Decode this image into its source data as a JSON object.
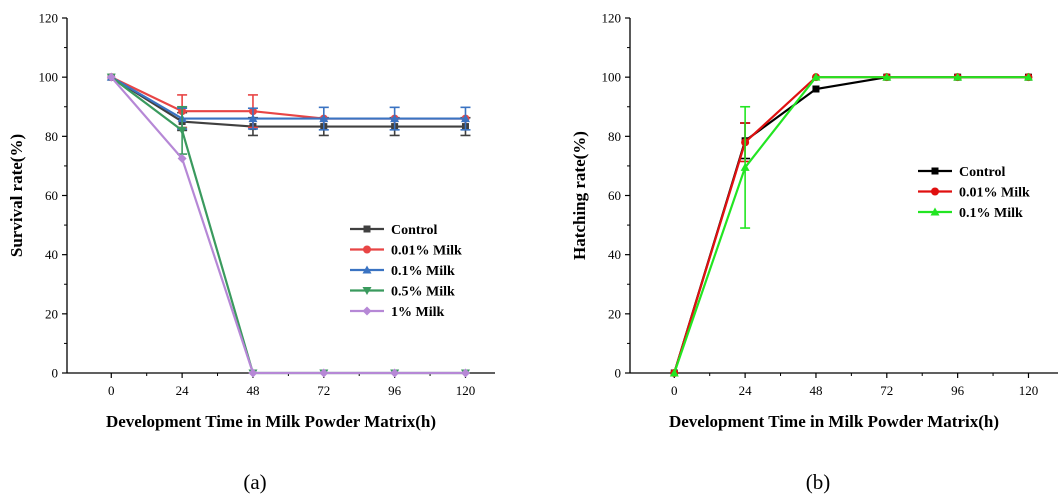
{
  "chart_data": [
    {
      "type": "line",
      "panel_label": "(a)",
      "xlabel": "Development Time in Milk Powder Matrix(h)",
      "ylabel": "Survival rate(%)",
      "x": [
        0,
        24,
        48,
        72,
        96,
        120
      ],
      "xticks": [
        "0",
        "24",
        "48",
        "72",
        "96",
        "120"
      ],
      "yticks": [
        "0",
        "20",
        "40",
        "60",
        "80",
        "100",
        "120"
      ],
      "xlim": [
        -15,
        130
      ],
      "ylim": [
        0,
        120
      ],
      "legend_position": "center-right",
      "series": [
        {
          "name": "Control",
          "color": "#404040",
          "marker": "square",
          "values": [
            100,
            85,
            83.3,
            83.3,
            83.3,
            83.3
          ],
          "errors": [
            0,
            3,
            3,
            3,
            3,
            3
          ]
        },
        {
          "name": "0.01% Milk",
          "color": "#e84545",
          "marker": "circle",
          "values": [
            100,
            88.5,
            88.5,
            86,
            86,
            86
          ],
          "errors": [
            0,
            5.5,
            5.5,
            0,
            0,
            0
          ]
        },
        {
          "name": "0.1% Milk",
          "color": "#3a73c2",
          "marker": "triangle-up",
          "values": [
            100,
            86,
            86,
            86,
            86,
            86
          ],
          "errors": [
            0,
            3.5,
            3.5,
            3.8,
            3.8,
            3.8
          ]
        },
        {
          "name": "0.5% Milk",
          "color": "#3a9a5e",
          "marker": "triangle-down",
          "values": [
            100,
            82,
            0,
            0,
            0,
            0
          ],
          "errors": [
            0,
            8,
            0,
            0,
            0,
            0
          ]
        },
        {
          "name": "1% Milk",
          "color": "#b688d6",
          "marker": "diamond",
          "values": [
            100,
            72.5,
            0,
            0,
            0,
            0
          ],
          "errors": [
            0,
            0,
            0,
            0,
            0,
            0
          ]
        }
      ]
    },
    {
      "type": "line",
      "panel_label": "(b)",
      "xlabel": "Development Time in Milk Powder Matrix(h)",
      "ylabel": "Hatching rate(%)",
      "x": [
        0,
        24,
        48,
        72,
        96,
        120
      ],
      "xticks": [
        "0",
        "24",
        "48",
        "72",
        "96",
        "120"
      ],
      "yticks": [
        "0",
        "20",
        "40",
        "60",
        "80",
        "100",
        "120"
      ],
      "xlim": [
        -15,
        130
      ],
      "ylim": [
        0,
        120
      ],
      "legend_position": "center-right",
      "series": [
        {
          "name": "Control",
          "color": "#000000",
          "marker": "square",
          "values": [
            0,
            78.5,
            96,
            100,
            100,
            100
          ],
          "errors": [
            0,
            6,
            0,
            0,
            0,
            0
          ]
        },
        {
          "name": "0.01% Milk",
          "color": "#e01010",
          "marker": "circle",
          "values": [
            0,
            78,
            100,
            100,
            100,
            100
          ],
          "errors": [
            0,
            6.5,
            0,
            0,
            0,
            0
          ]
        },
        {
          "name": "0.1% Milk",
          "color": "#22e522",
          "marker": "triangle-up",
          "values": [
            0,
            69.5,
            100,
            100,
            100,
            100
          ],
          "errors": [
            0,
            20.5,
            0,
            0,
            0,
            0
          ]
        }
      ]
    }
  ]
}
